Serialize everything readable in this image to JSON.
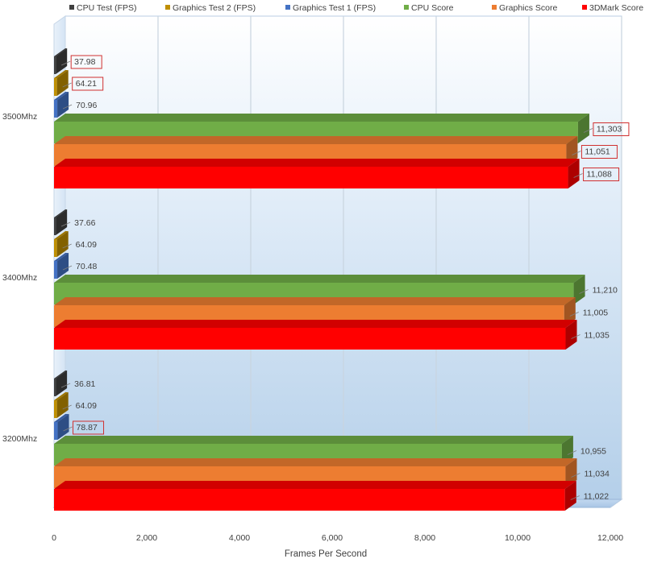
{
  "chart_data": {
    "type": "bar",
    "orientation": "horizontal",
    "style": "3d-clustered",
    "xlabel": "Frames Per Second",
    "xlim": [
      0,
      12000
    ],
    "x_ticks": [
      "0",
      "2,000",
      "4,000",
      "6,000",
      "8,000",
      "10,000",
      "12,000"
    ],
    "x_tick_values": [
      0,
      2000,
      4000,
      6000,
      8000,
      10000,
      12000
    ],
    "grid": true,
    "legend_placement": "top",
    "categories": [
      "3500Mhz",
      "3400Mhz",
      "3200Mhz"
    ],
    "series": [
      {
        "name": "CPU Test (FPS)",
        "color": "#404040",
        "values": [
          37.98,
          37.66,
          36.81
        ],
        "labels": [
          "37.98",
          "37.66",
          "36.81"
        ],
        "highlight": [
          true,
          false,
          false
        ]
      },
      {
        "name": "Graphics Test 2 (FPS)",
        "color": "#bf8f00",
        "values": [
          64.21,
          64.09,
          64.09
        ],
        "labels": [
          "64.21",
          "64.09",
          "64.09"
        ],
        "highlight": [
          true,
          false,
          false
        ]
      },
      {
        "name": "Graphics Test 1 (FPS)",
        "color": "#4472c4",
        "values": [
          70.96,
          70.48,
          78.87
        ],
        "labels": [
          "70.96",
          "70.48",
          "78.87"
        ],
        "highlight": [
          false,
          false,
          true
        ]
      },
      {
        "name": "CPU Score",
        "color": "#70ad47",
        "values": [
          11303,
          11210,
          10955
        ],
        "labels": [
          "11,303",
          "11,210",
          "10,955"
        ],
        "highlight": [
          true,
          false,
          false
        ]
      },
      {
        "name": "Graphics Score",
        "color": "#ed7d31",
        "values": [
          11051,
          11005,
          11034
        ],
        "labels": [
          "11,051",
          "11,005",
          "11,034"
        ],
        "highlight": [
          true,
          false,
          false
        ]
      },
      {
        "name": "3DMark Score",
        "color": "#ff0000",
        "values": [
          11088,
          11035,
          11022
        ],
        "labels": [
          "11,088",
          "11,035",
          "11,022"
        ],
        "highlight": [
          true,
          false,
          false
        ]
      }
    ],
    "highlight_color": "#d03030"
  }
}
